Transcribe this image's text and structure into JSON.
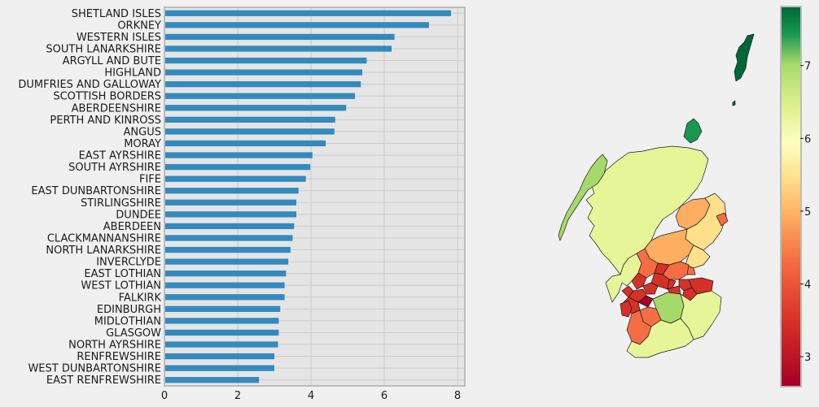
{
  "chart_data": [
    {
      "type": "bar",
      "orientation": "horizontal",
      "title": "",
      "xlabel": "",
      "ylabel": "",
      "xlim": [
        0,
        8.2
      ],
      "xticks": [
        "0",
        "2",
        "4",
        "6",
        "8"
      ],
      "grid": true,
      "color": "#348abd",
      "categories": [
        "SHETLAND ISLES",
        "ORKNEY",
        "WESTERN ISLES",
        "SOUTH LANARKSHIRE",
        "ARGYLL AND BUTE",
        "HIGHLAND",
        "DUMFRIES AND GALLOWAY",
        "SCOTTISH BORDERS",
        "ABERDEENSHIRE",
        "PERTH AND KINROSS",
        "ANGUS",
        "MORAY",
        "EAST AYRSHIRE",
        "SOUTH AYRSHIRE",
        "FIFE",
        "EAST DUNBARTONSHIRE",
        "STIRLINGSHIRE",
        "DUNDEE",
        "ABERDEEN",
        "CLACKMANNANSHIRE",
        "NORTH LANARKSHIRE",
        "INVERCLYDE",
        "EAST LOTHIAN",
        "WEST LOTHIAN",
        "FALKIRK",
        "EDINBURGH",
        "MIDLOTHIAN",
        "GLASGOW",
        "NORTH AYRSHIRE",
        "RENFREWSHIRE",
        "WEST DUNBARTONSHIRE",
        "EAST RENFREWSHIRE"
      ],
      "values": [
        7.82,
        7.22,
        6.28,
        6.2,
        5.52,
        5.4,
        5.36,
        5.2,
        4.96,
        4.66,
        4.64,
        4.4,
        4.04,
        3.98,
        3.86,
        3.66,
        3.6,
        3.6,
        3.54,
        3.5,
        3.44,
        3.38,
        3.32,
        3.28,
        3.28,
        3.16,
        3.12,
        3.12,
        3.1,
        3.0,
        3.0,
        2.58
      ]
    },
    {
      "type": "choropleth",
      "title": "",
      "colormap": "RdYlGn",
      "colorbar_range": [
        2.6,
        7.8
      ],
      "colorbar_ticks": [
        "3",
        "4",
        "5",
        "6",
        "7"
      ],
      "colorbar_stops": [
        "#a50026",
        "#f46d43",
        "#fee08b",
        "#ffffbf",
        "#a6d96a",
        "#006837"
      ]
    }
  ]
}
